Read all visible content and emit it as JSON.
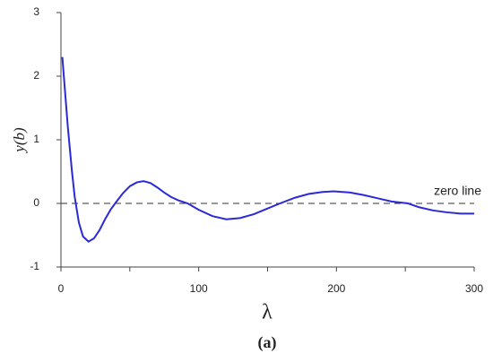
{
  "chart_data": {
    "type": "line",
    "x_label": "λ",
    "y_label": "y(b)",
    "caption": "(a)",
    "annotation": "zero line",
    "x": [
      1,
      3,
      5,
      8,
      10,
      13,
      16,
      20,
      24,
      28,
      32,
      36,
      40,
      45,
      50,
      55,
      60,
      65,
      70,
      75,
      80,
      85,
      92,
      100,
      110,
      120,
      130,
      140,
      150,
      159,
      170,
      180,
      190,
      198,
      210,
      220,
      230,
      240,
      252,
      260,
      270,
      280,
      290,
      300
    ],
    "series": [
      {
        "color": "#2a2ad8",
        "values": [
          2.3,
          1.75,
          1.2,
          0.5,
          0.1,
          -0.3,
          -0.52,
          -0.6,
          -0.55,
          -0.42,
          -0.25,
          -0.1,
          0.02,
          0.16,
          0.27,
          0.33,
          0.35,
          0.32,
          0.25,
          0.17,
          0.1,
          0.05,
          0,
          -0.1,
          -0.2,
          -0.25,
          -0.23,
          -0.17,
          -0.08,
          0,
          0.09,
          0.15,
          0.18,
          0.19,
          0.17,
          0.13,
          0.08,
          0.03,
          0,
          -0.06,
          -0.11,
          -0.14,
          -0.16,
          -0.16
        ]
      }
    ],
    "reference_line": 0,
    "xlim": [
      0,
      300
    ],
    "xticks": [
      0,
      100,
      200,
      300
    ],
    "xminor_ticks": [
      50,
      150,
      250
    ],
    "ylim": [
      -1,
      3
    ],
    "yticks": [
      -1,
      0,
      1,
      2,
      3
    ]
  }
}
